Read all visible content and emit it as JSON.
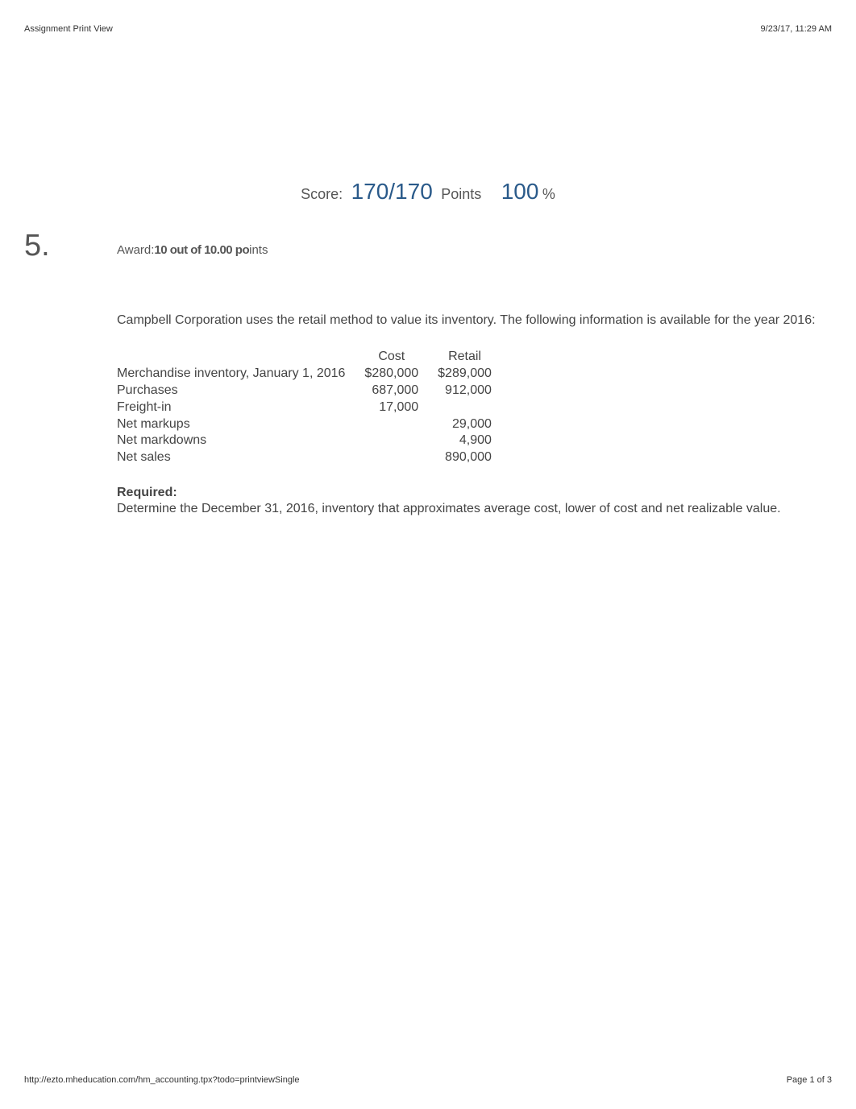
{
  "header": {
    "title": "Assignment Print View",
    "timestamp": "9/23/17, 11:29 AM"
  },
  "score": {
    "label": "Score:",
    "value": "170/170",
    "points_label": "Points",
    "percent": "100",
    "percent_sign": "%"
  },
  "question": {
    "number": "5.",
    "award_prefix": "Award:",
    "award_bold": "10 out of 10.00 po",
    "award_suffix": "ints"
  },
  "problem": {
    "intro": "Campbell Corporation uses the retail method to value its inventory. The following information is available for the year 2016:",
    "table": {
      "headers": [
        "",
        "Cost",
        "Retail"
      ],
      "rows": [
        {
          "label": "Merchandise inventory, January 1, 2016",
          "cost": "$280,000",
          "retail": "$289,000"
        },
        {
          "label": "Purchases",
          "cost": "687,000",
          "retail": "912,000"
        },
        {
          "label": "Freight-in",
          "cost": "17,000",
          "retail": ""
        },
        {
          "label": "Net markups",
          "cost": "",
          "retail": "29,000"
        },
        {
          "label": "Net markdowns",
          "cost": "",
          "retail": "4,900"
        },
        {
          "label": "Net sales",
          "cost": "",
          "retail": "890,000"
        }
      ]
    },
    "required_label": "Required:",
    "required_text": "Determine the December 31, 2016, inventory that approximates average cost, lower of cost and net realizable value."
  },
  "footer": {
    "url": "http://ezto.mheducation.com/hm_accounting.tpx?todo=printviewSingle",
    "page": "Page 1 of 3"
  }
}
